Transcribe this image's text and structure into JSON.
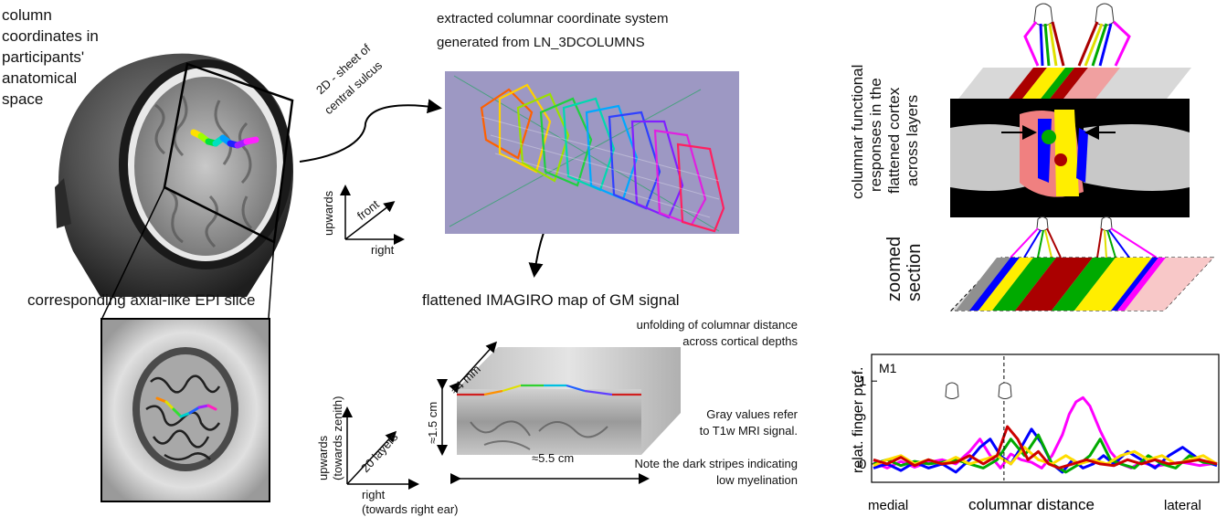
{
  "anatomy": {
    "title_lines": [
      "column",
      "coordinates in",
      "participants'",
      "anatomical",
      "space"
    ],
    "epi_caption": "corresponding axial-like EPI slice"
  },
  "columnar": {
    "title_line1": "extracted columnar coordinate system",
    "title_line2": "generated from LN_3DCOLUMNS",
    "sheet_label_line1": "2D - sheet of",
    "sheet_label_line2": "central sulcus",
    "axes": {
      "up": "upwards",
      "front": "front",
      "right": "right"
    },
    "background_color": "#9d98c3"
  },
  "flattened": {
    "title": "flattened IMAGIRO map of GM signal",
    "unfold_line1": "unfolding of columnar distance",
    "unfold_line2": "across cortical depths",
    "dim_depth": "≈4 mm",
    "dim_height": "≈1.5 cm",
    "dim_width": "≈5.5 cm",
    "gray_line1": "Gray values refer",
    "gray_line2": "to T1w MRI signal.",
    "gray_line3": "Note the dark stripes indicating",
    "gray_line4": "low myelination",
    "axes": {
      "up_line1": "upwards",
      "up_line2": "(towards zenith)",
      "layers": "20 layers",
      "right_line1": "right",
      "right_line2": "(towards right ear)"
    }
  },
  "responses": {
    "label_line1": "columnar functional",
    "label_line2": "responses in the",
    "label_line3": "flattened cortex",
    "label_line4": "across layers",
    "zoom_line1": "zoomed",
    "zoom_line2": "section"
  },
  "finger_colors": [
    "#ff00ff",
    "#0000ff",
    "#00aa00",
    "#ffee00",
    "#aa0000"
  ],
  "chart_data": {
    "type": "line",
    "panel_label": "M1",
    "ylabel": "relat.  finger pref.",
    "xlabel": "columnar distance",
    "x_left_label": "medial",
    "x_right_label": "lateral",
    "ylim": [
      -0.2,
      1.3
    ],
    "yticks": [
      0,
      1
    ],
    "xlim": [
      0,
      100
    ],
    "divider_x": 38,
    "series": [
      {
        "color": "#ff00ff",
        "x": [
          0,
          4,
          8,
          12,
          16,
          20,
          24,
          28,
          31,
          34,
          37,
          40,
          43,
          46,
          49,
          52,
          55,
          57,
          59,
          61,
          63,
          66,
          69,
          72,
          75,
          78,
          82,
          86,
          90,
          95,
          100
        ],
        "y": [
          0.02,
          -0.05,
          0.03,
          -0.04,
          0.02,
          0.05,
          0.0,
          0.15,
          0.3,
          0.1,
          -0.05,
          0.12,
          0.05,
          0.02,
          -0.05,
          0.1,
          0.35,
          0.6,
          0.75,
          0.8,
          0.7,
          0.4,
          0.15,
          0.0,
          -0.05,
          0.02,
          -0.03,
          0.0,
          0.02,
          -0.02,
          0.01
        ]
      },
      {
        "color": "#0000ff",
        "x": [
          0,
          4,
          8,
          12,
          16,
          20,
          24,
          28,
          31,
          34,
          37,
          40,
          43,
          46,
          49,
          52,
          55,
          58,
          61,
          64,
          67,
          70,
          74,
          78,
          82,
          86,
          90,
          95,
          100
        ],
        "y": [
          -0.05,
          0.0,
          -0.08,
          0.02,
          -0.05,
          0.0,
          -0.1,
          0.05,
          0.2,
          0.3,
          0.1,
          0.0,
          0.2,
          0.42,
          0.25,
          0.0,
          -0.1,
          0.05,
          -0.05,
          0.0,
          0.1,
          0.0,
          0.15,
          0.05,
          -0.05,
          0.1,
          0.2,
          0.05,
          -0.02
        ]
      },
      {
        "color": "#00aa00",
        "x": [
          0,
          4,
          8,
          12,
          16,
          20,
          24,
          28,
          32,
          36,
          40,
          44,
          48,
          52,
          56,
          60,
          63,
          66,
          69,
          72,
          76,
          80,
          84,
          88,
          92,
          96,
          100
        ],
        "y": [
          0.0,
          0.05,
          -0.02,
          0.03,
          0.0,
          0.02,
          0.05,
          0.0,
          -0.05,
          0.05,
          0.3,
          0.1,
          0.35,
          0.0,
          -0.1,
          0.0,
          0.1,
          0.3,
          0.05,
          0.0,
          -0.05,
          0.1,
          0.0,
          -0.05,
          0.1,
          0.02,
          0.0
        ]
      },
      {
        "color": "#ffdd00",
        "x": [
          0,
          4,
          8,
          12,
          16,
          20,
          24,
          28,
          32,
          36,
          40,
          44,
          48,
          52,
          56,
          60,
          64,
          68,
          72,
          76,
          80,
          84,
          88,
          92,
          96,
          100
        ],
        "y": [
          -0.02,
          0.05,
          0.1,
          0.0,
          0.05,
          0.0,
          0.08,
          0.0,
          0.05,
          0.1,
          0.0,
          0.2,
          0.05,
          0.0,
          0.1,
          0.0,
          0.05,
          0.0,
          0.1,
          0.15,
          0.05,
          0.1,
          0.0,
          0.05,
          0.1,
          0.0
        ]
      },
      {
        "color": "#cc0000",
        "x": [
          0,
          4,
          8,
          12,
          16,
          20,
          24,
          28,
          32,
          36,
          39,
          42,
          45,
          48,
          51,
          54,
          58,
          62,
          66,
          70,
          74,
          78,
          82,
          86,
          90,
          95,
          100
        ],
        "y": [
          0.05,
          0.0,
          0.08,
          -0.02,
          0.05,
          0.0,
          0.02,
          0.1,
          0.0,
          0.1,
          0.45,
          0.3,
          0.05,
          0.15,
          0.0,
          -0.05,
          0.0,
          0.05,
          0.0,
          -0.02,
          0.05,
          0.0,
          0.05,
          0.0,
          0.02,
          0.05,
          0.0
        ]
      }
    ]
  }
}
